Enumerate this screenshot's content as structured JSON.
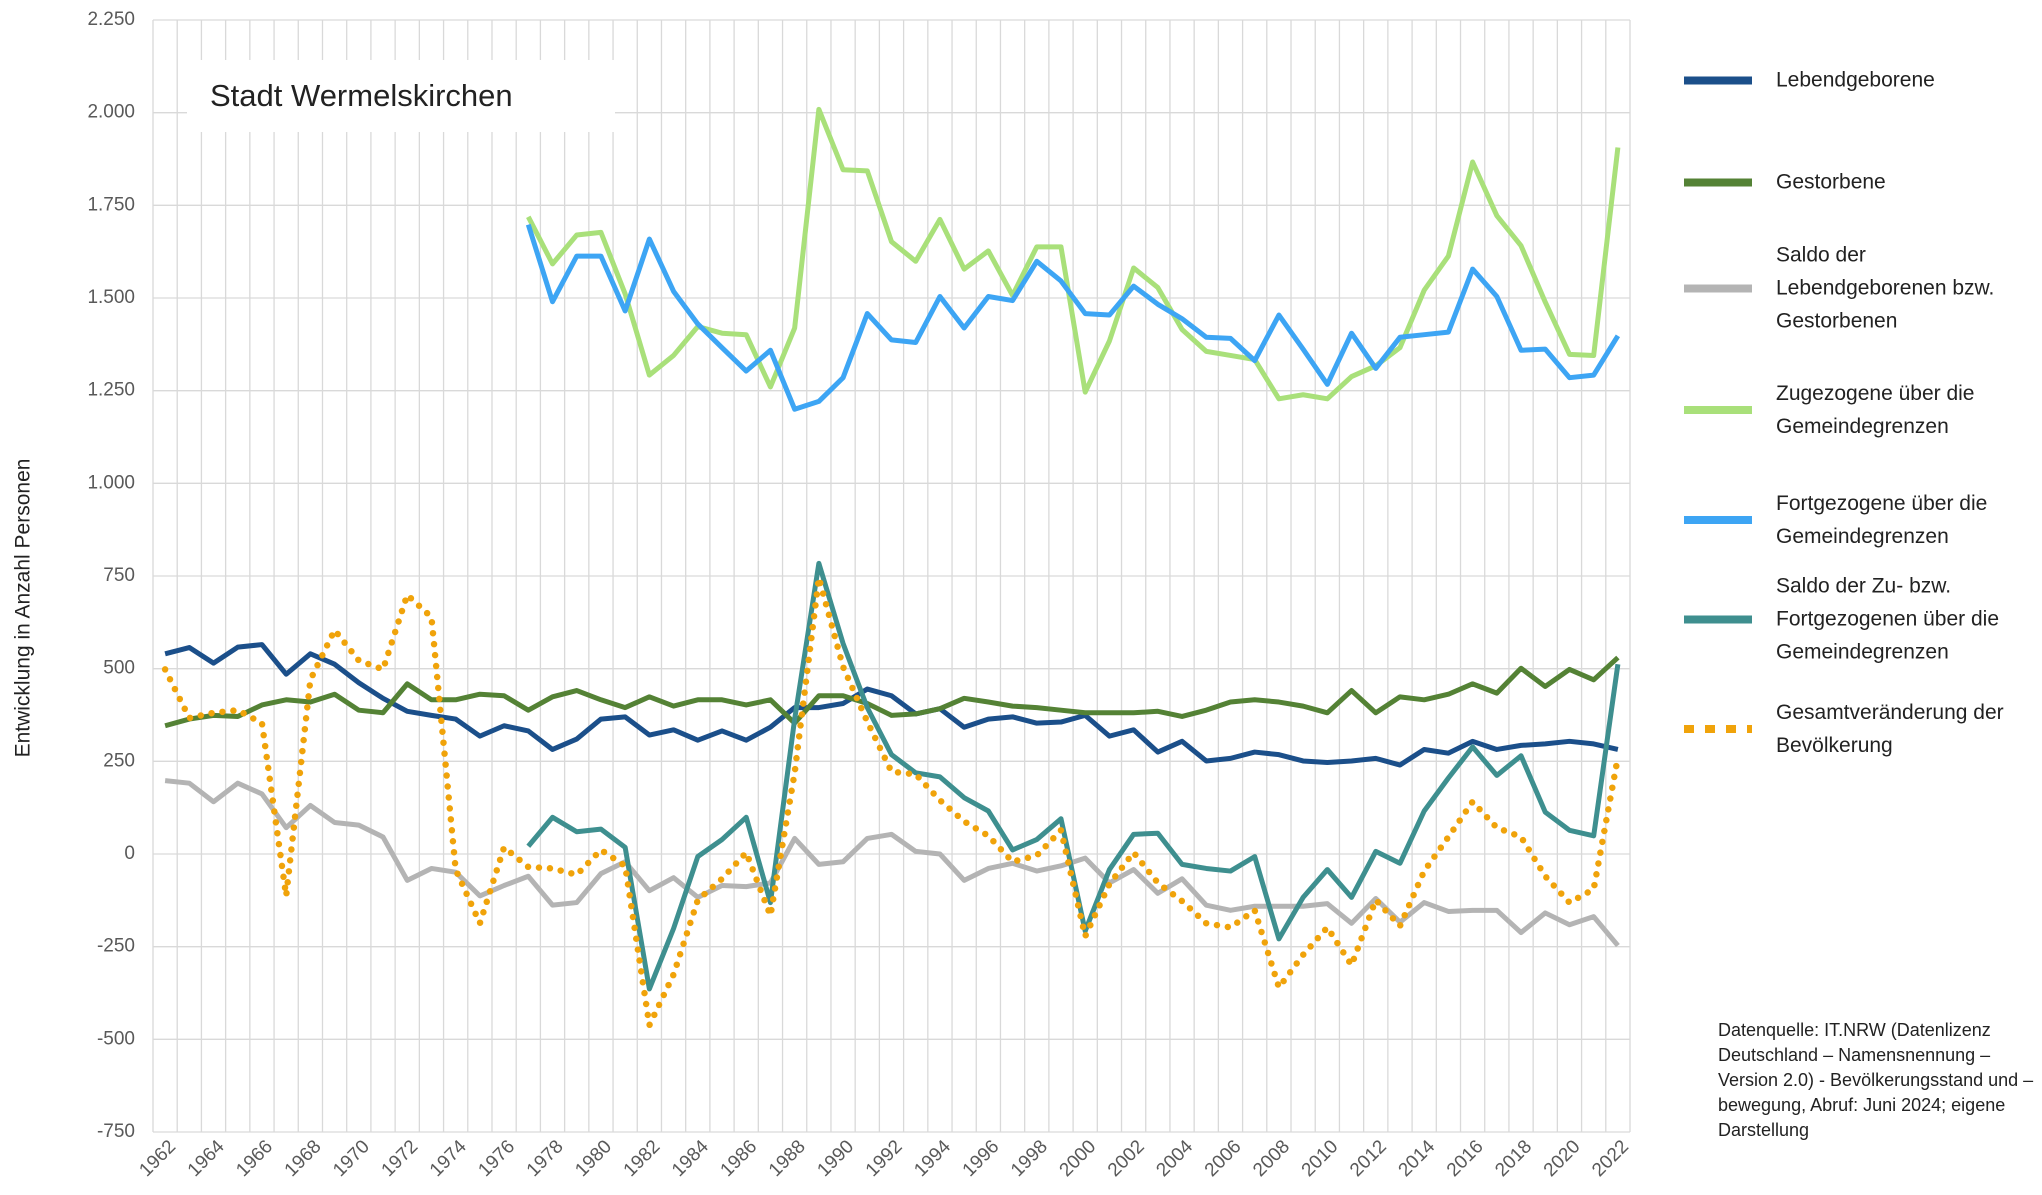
{
  "chart_data": {
    "type": "line",
    "title": "Stadt Wermelskirchen",
    "y_label": "Entwicklung in Anzahl Personen",
    "source": "Datenquelle: IT.NRW (Datenlizenz Deutschland – Namensnennung – Version 2.0) - Bevölkerungsstand und –bewegung, Abruf: Juni 2024; eigene Darstellung",
    "categories": [
      "1962",
      null,
      "1964",
      null,
      "1966",
      null,
      "1968",
      null,
      "1970",
      null,
      "1972",
      null,
      "1974",
      null,
      "1976",
      null,
      "1978",
      null,
      "1980",
      null,
      "1982",
      null,
      "1984",
      null,
      "1986",
      null,
      "1988",
      null,
      "1990",
      null,
      "1992",
      null,
      "1994",
      null,
      "1996",
      null,
      "1998",
      null,
      "2000",
      null,
      "2002",
      null,
      "2004",
      null,
      "2006",
      null,
      "2008",
      null,
      "2010",
      null,
      "2012",
      null,
      "2014",
      null,
      "2016",
      null,
      "2018",
      null,
      "2020",
      null,
      "2022"
    ],
    "ylim": [
      -750,
      2250
    ],
    "yticks": [
      -750,
      -500,
      -250,
      0,
      250,
      500,
      750,
      {
        "value": 1000,
        "label": "1.000"
      },
      {
        "value": 1250,
        "label": "1.250"
      },
      {
        "value": 1500,
        "label": "1.500"
      },
      {
        "value": 1750,
        "label": "1.750"
      },
      {
        "value": 2000,
        "label": "2.000"
      },
      {
        "value": 2250,
        "label": "2.250"
      }
    ],
    "grid": true,
    "legend": "right",
    "series": [
      {
        "name": "Lebendgeborene",
        "color": "#1b4f8a",
        "style": "solid",
        "values": [
          540,
          557,
          515,
          558,
          565,
          485,
          540,
          512,
          462,
          420,
          385,
          374,
          364,
          318,
          346,
          332,
          282,
          310,
          364,
          370,
          321,
          335,
          307,
          332,
          307,
          342,
          395,
          395,
          406,
          445,
          427,
          378,
          392,
          342,
          364,
          370,
          353,
          356,
          374,
          318,
          335,
          275,
          304,
          251,
          258,
          275,
          268,
          251,
          247,
          251,
          258,
          240,
          282,
          272,
          304,
          282,
          293,
          297,
          304,
          297,
          282
        ]
      },
      {
        "name": "Gestorbene",
        "color": "#548235",
        "style": "solid",
        "values": [
          346,
          364,
          374,
          371,
          402,
          416,
          410,
          431,
          388,
          381,
          459,
          416,
          416,
          431,
          427,
          388,
          424,
          441,
          416,
          395,
          424,
          399,
          416,
          416,
          402,
          416,
          353,
          427,
          427,
          406,
          374,
          378,
          392,
          420,
          410,
          399,
          395,
          388,
          381,
          381,
          381,
          385,
          371,
          388,
          410,
          416,
          410,
          399,
          381,
          441,
          381,
          424,
          416,
          431,
          459,
          434,
          501,
          452,
          498,
          470,
          530
        ]
      },
      {
        "name": "Saldo der Lebendgeborenen bzw. Gestorbenen",
        "color": "#b4b4b4",
        "style": "solid",
        "values": [
          198,
          191,
          141,
          191,
          162,
          71,
          131,
          85,
          78,
          46,
          -71,
          -39,
          -49,
          -113,
          -85,
          -60,
          -138,
          -131,
          -53,
          -21,
          -99,
          -64,
          -117,
          -85,
          -88,
          -78,
          42,
          -28,
          -21,
          42,
          53,
          7,
          0,
          -71,
          -39,
          -25,
          -46,
          -32,
          -11,
          -78,
          -42,
          -106,
          -67,
          -138,
          -152,
          -141,
          -141,
          -141,
          -134,
          -187,
          -120,
          -184,
          -131,
          -155,
          -152,
          -152,
          -212,
          -159,
          -191,
          -169,
          -247
        ]
      },
      {
        "name": "Zugezogene über die Gemeindegrenzen",
        "color": "#a9e07a",
        "style": "solid",
        "values": [
          null,
          null,
          null,
          null,
          null,
          null,
          null,
          null,
          null,
          null,
          null,
          null,
          null,
          null,
          null,
          1719,
          1592,
          1670,
          1677,
          1511,
          1292,
          1345,
          1423,
          1405,
          1401,
          1260,
          1419,
          2009,
          1846,
          1843,
          1652,
          1599,
          1712,
          1578,
          1627,
          1507,
          1638,
          1638,
          1246,
          1384,
          1581,
          1528,
          1415,
          1356,
          1345,
          1334,
          1228,
          1239,
          1228,
          1288,
          1317,
          1366,
          1521,
          1613,
          1867,
          1722,
          1641,
          1489,
          1348,
          1345,
          1906
        ]
      },
      {
        "name": "Fortgezogene über die Gemeindegrenzen",
        "color": "#3da5f4",
        "style": "solid",
        "values": [
          null,
          null,
          null,
          null,
          null,
          null,
          null,
          null,
          null,
          null,
          null,
          null,
          null,
          null,
          null,
          1698,
          1490,
          1613,
          1613,
          1465,
          1659,
          1518,
          1430,
          1366,
          1303,
          1359,
          1200,
          1221,
          1285,
          1458,
          1387,
          1380,
          1504,
          1419,
          1504,
          1493,
          1599,
          1546,
          1458,
          1454,
          1532,
          1483,
          1444,
          1394,
          1391,
          1331,
          1454,
          1362,
          1267,
          1405,
          1310,
          1394,
          1401,
          1408,
          1578,
          1504,
          1359,
          1362,
          1285,
          1292,
          1398
        ]
      },
      {
        "name": "Saldo der Zu- bzw. Fortgezogenen über die Gemeindegrenzen",
        "color": "#3e8f8f",
        "style": "solid",
        "values": [
          null,
          null,
          null,
          null,
          null,
          null,
          null,
          null,
          null,
          null,
          null,
          null,
          null,
          null,
          null,
          21,
          99,
          60,
          67,
          18,
          -364,
          -201,
          -7,
          39,
          99,
          -131,
          364,
          784,
          568,
          395,
          268,
          219,
          208,
          152,
          116,
          11,
          39,
          95,
          -208,
          -42,
          53,
          56,
          -28,
          -39,
          -46,
          -7,
          -229,
          -117,
          -42,
          -117,
          7,
          -25,
          116,
          205,
          289,
          212,
          265,
          113,
          64,
          49,
          512
        ]
      },
      {
        "name": "Gesamtveränderung der Bevölkerung",
        "color": "#f0a30a",
        "style": "dotted",
        "values": [
          498,
          367,
          381,
          388,
          353,
          -113,
          470,
          604,
          522,
          498,
          699,
          639,
          -42,
          -187,
          18,
          -35,
          -39,
          -56,
          11,
          -32,
          -462,
          -325,
          -124,
          -67,
          4,
          -166,
          219,
          745,
          505,
          357,
          222,
          215,
          145,
          88,
          49,
          -21,
          -4,
          64,
          -222,
          -81,
          4,
          -78,
          -127,
          -187,
          -198,
          -152,
          -360,
          -272,
          -198,
          -300,
          -124,
          -194,
          -46,
          46,
          141,
          71,
          46,
          -60,
          -131,
          -95,
          261
        ]
      }
    ]
  }
}
